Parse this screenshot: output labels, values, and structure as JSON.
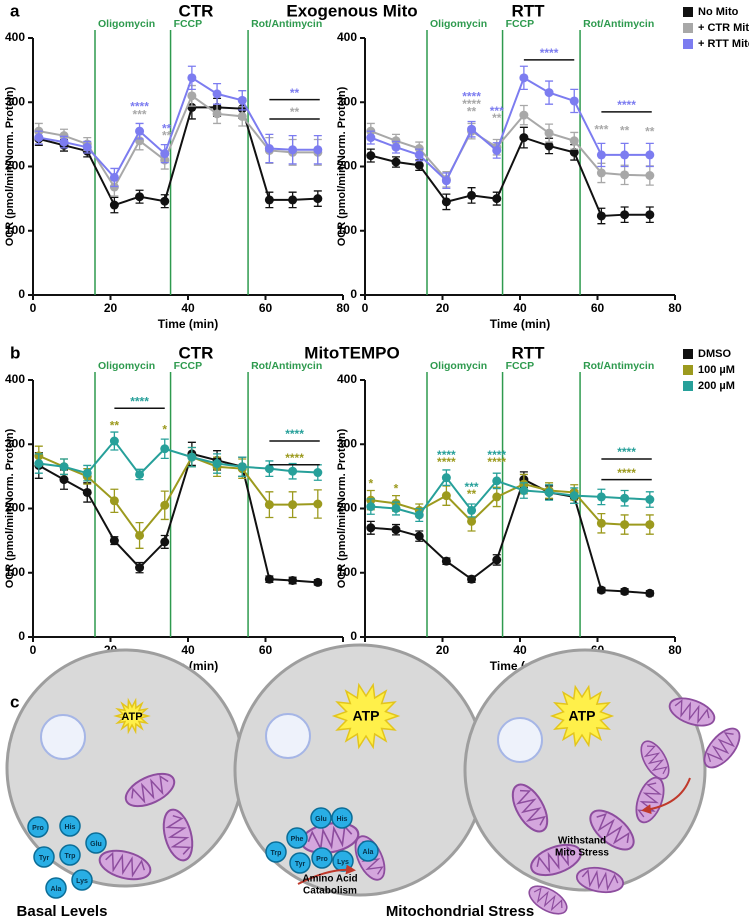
{
  "panels": {
    "a": "a",
    "b": "b",
    "c": "c",
    "a_title": "Exogenous Mito",
    "b_title": "MitoTEMPO"
  },
  "chart_data": [
    {
      "type": "line",
      "title": "CTR",
      "xlabel": "Time (min)",
      "ylabel": "OCR (pmol/min/Norm. Protein)",
      "x": [
        1.5,
        8,
        14,
        21,
        27.5,
        34,
        41,
        47.5,
        54,
        61,
        67,
        73.5
      ],
      "xlim": [
        0,
        80
      ],
      "xticks": [
        0,
        20,
        40,
        60,
        80
      ],
      "ylim": [
        0,
        400
      ],
      "yticks": [
        0,
        100,
        200,
        300,
        400
      ],
      "injections": [
        {
          "label": "Oligomycin",
          "x": 16
        },
        {
          "label": "FCCP",
          "x": 35.5
        },
        {
          "label": "Rot/Antimycin",
          "x": 55.5
        }
      ],
      "series": [
        {
          "name": "No Mito",
          "color": "#111111",
          "values": [
            243,
            233,
            224,
            140,
            153,
            146,
            292,
            292,
            290,
            148,
            148,
            150
          ],
          "errors": [
            10,
            9,
            9,
            12,
            10,
            10,
            18,
            14,
            15,
            12,
            12,
            12
          ]
        },
        {
          "name": "+ CTR Mito",
          "color": "#a8a8a8",
          "values": [
            255,
            248,
            235,
            168,
            240,
            210,
            310,
            282,
            278,
            225,
            222,
            222
          ],
          "errors": [
            12,
            10,
            10,
            14,
            14,
            14,
            16,
            15,
            15,
            20,
            20,
            20
          ]
        },
        {
          "name": "+ RTT Mito",
          "color": "#7c7cf0",
          "values": [
            245,
            238,
            230,
            183,
            255,
            220,
            338,
            313,
            303,
            228,
            226,
            226
          ],
          "errors": [
            10,
            9,
            9,
            14,
            12,
            14,
            18,
            16,
            15,
            22,
            22,
            22
          ]
        }
      ],
      "annotations": [
        {
          "text": "****",
          "x": 27.5,
          "y": 292,
          "color": "#7c7cf0"
        },
        {
          "text": "***",
          "x": 27.5,
          "y": 280,
          "color": "#a8a8a8"
        },
        {
          "text": "**",
          "x": 34.5,
          "y": 258,
          "color": "#7c7cf0"
        },
        {
          "text": "**",
          "x": 34.5,
          "y": 247,
          "color": "#a8a8a8"
        },
        {
          "text": "**",
          "x": [
            61,
            74
          ],
          "y": 304,
          "color": "#7c7cf0"
        },
        {
          "text": "**",
          "x": [
            61,
            74
          ],
          "y": 274,
          "color": "#a8a8a8"
        }
      ]
    },
    {
      "type": "line",
      "title": "RTT",
      "xlabel": "Time (min)",
      "ylabel": "OCR (pmol/min/Norm. Protein)",
      "legend": "outside-right",
      "x": [
        1.5,
        8,
        14,
        21,
        27.5,
        34,
        41,
        47.5,
        54,
        61,
        67,
        73.5
      ],
      "xlim": [
        0,
        80
      ],
      "xticks": [
        0,
        20,
        40,
        60,
        80
      ],
      "ylim": [
        0,
        400
      ],
      "yticks": [
        0,
        100,
        200,
        300,
        400
      ],
      "injections": [
        {
          "label": "Oligomycin",
          "x": 16
        },
        {
          "label": "FCCP",
          "x": 35.5
        },
        {
          "label": "Rot/Antimycin",
          "x": 55.5
        }
      ],
      "series": [
        {
          "name": "No Mito",
          "color": "#111111",
          "values": [
            217,
            207,
            202,
            145,
            155,
            150,
            245,
            232,
            222,
            123,
            125,
            125
          ],
          "errors": [
            10,
            8,
            8,
            12,
            12,
            10,
            16,
            12,
            12,
            12,
            12,
            12
          ]
        },
        {
          "name": "+ CTR Mito",
          "color": "#a8a8a8",
          "values": [
            255,
            240,
            228,
            180,
            255,
            230,
            280,
            252,
            240,
            190,
            187,
            186
          ],
          "errors": [
            12,
            10,
            10,
            12,
            12,
            12,
            15,
            14,
            13,
            15,
            15,
            15
          ]
        },
        {
          "name": "+ RTT Mito",
          "color": "#7c7cf0",
          "values": [
            245,
            230,
            218,
            178,
            258,
            225,
            338,
            315,
            302,
            218,
            218,
            218
          ],
          "errors": [
            10,
            9,
            9,
            12,
            12,
            12,
            18,
            18,
            18,
            18,
            18,
            18
          ]
        }
      ],
      "annotations": [
        {
          "text": "****",
          "x": 27.5,
          "y": 308,
          "color": "#7c7cf0"
        },
        {
          "text": "****",
          "x": 27.5,
          "y": 296,
          "color": "#a8a8a8"
        },
        {
          "text": "**",
          "x": 27.5,
          "y": 284,
          "color": "#a8a8a8"
        },
        {
          "text": "***",
          "x": 34,
          "y": 285,
          "color": "#7c7cf0"
        },
        {
          "text": "**",
          "x": 34,
          "y": 274,
          "color": "#a8a8a8"
        },
        {
          "text": "****",
          "x": [
            41,
            54
          ],
          "y": 366,
          "color": "#7c7cf0"
        },
        {
          "text": "***",
          "x": 61,
          "y": 256,
          "color": "#a8a8a8"
        },
        {
          "text": "**",
          "x": 67,
          "y": 255,
          "color": "#a8a8a8"
        },
        {
          "text": "**",
          "x": 73.5,
          "y": 253,
          "color": "#a8a8a8"
        },
        {
          "text": "****",
          "x": [
            61,
            74
          ],
          "y": 285,
          "color": "#7c7cf0"
        }
      ]
    },
    {
      "type": "line",
      "title": "CTR",
      "xlabel": "Time (min)",
      "ylabel": "OCR (pmol/min/Norm. Protein)",
      "x": [
        1.5,
        8,
        14,
        21,
        27.5,
        34,
        41,
        47.5,
        54,
        61,
        67,
        73.5
      ],
      "xlim": [
        0,
        80
      ],
      "xticks": [
        0,
        20,
        40,
        60,
        80
      ],
      "ylim": [
        0,
        400
      ],
      "yticks": [
        0,
        100,
        200,
        300,
        400
      ],
      "injections": [
        {
          "label": "Oligomycin",
          "x": 16
        },
        {
          "label": "FCCP",
          "x": 35.5
        },
        {
          "label": "Rot/Antimycin",
          "x": 55.5
        }
      ],
      "series": [
        {
          "name": "DMSO",
          "color": "#111111",
          "values": [
            267,
            245,
            225,
            150,
            108,
            148,
            285,
            275,
            265,
            90,
            88,
            85
          ],
          "errors": [
            20,
            15,
            15,
            6,
            8,
            10,
            18,
            15,
            15,
            5,
            5,
            4
          ]
        },
        {
          "name": "100 µM",
          "color": "#9c9a1e",
          "values": [
            282,
            265,
            250,
            212,
            158,
            205,
            280,
            265,
            262,
            206,
            206,
            207
          ],
          "errors": [
            15,
            12,
            12,
            18,
            20,
            22,
            15,
            15,
            15,
            20,
            20,
            22
          ]
        },
        {
          "name": "200 µM",
          "color": "#27a09a",
          "values": [
            270,
            265,
            255,
            305,
            253,
            293,
            280,
            270,
            265,
            262,
            258,
            256
          ],
          "errors": [
            15,
            12,
            12,
            14,
            8,
            15,
            15,
            15,
            15,
            12,
            12,
            12
          ]
        }
      ],
      "annotations": [
        {
          "text": "**",
          "x": 21,
          "y": 328,
          "color": "#9c9a1e"
        },
        {
          "text": "*",
          "x": 34,
          "y": 322,
          "color": "#9c9a1e"
        },
        {
          "text": "****",
          "x": [
            21,
            34
          ],
          "y": 356,
          "color": "#27a09a"
        },
        {
          "text": "****",
          "x": [
            61,
            74
          ],
          "y": 305,
          "color": "#27a09a"
        },
        {
          "text": "****",
          "x": [
            61,
            74
          ],
          "y": 268,
          "color": "#9c9a1e"
        }
      ]
    },
    {
      "type": "line",
      "title": "RTT",
      "xlabel": "Time (min)",
      "ylabel": "OCR (pmol/min/Norm. Protein)",
      "legend": "outside-right",
      "x": [
        1.5,
        8,
        14,
        21,
        27.5,
        34,
        41,
        47.5,
        54,
        61,
        67,
        73.5
      ],
      "xlim": [
        0,
        80
      ],
      "xticks": [
        0,
        20,
        40,
        60,
        80
      ],
      "ylim": [
        0,
        400
      ],
      "yticks": [
        0,
        100,
        200,
        300,
        400
      ],
      "injections": [
        {
          "label": "Oligomycin",
          "x": 16
        },
        {
          "label": "FCCP",
          "x": 35.5
        },
        {
          "label": "Rot/Antimycin",
          "x": 55.5
        }
      ],
      "series": [
        {
          "name": "DMSO",
          "color": "#111111",
          "values": [
            170,
            167,
            157,
            118,
            90,
            120,
            245,
            225,
            218,
            73,
            71,
            68
          ],
          "errors": [
            10,
            8,
            8,
            5,
            5,
            8,
            12,
            10,
            10,
            4,
            4,
            4
          ]
        },
        {
          "name": "100 µM",
          "color": "#9c9a1e",
          "values": [
            213,
            208,
            197,
            220,
            180,
            218,
            238,
            228,
            225,
            177,
            175,
            175
          ],
          "errors": [
            15,
            12,
            10,
            15,
            15,
            15,
            15,
            12,
            12,
            15,
            15,
            15
          ]
        },
        {
          "name": "200 µM",
          "color": "#27a09a",
          "values": [
            203,
            200,
            190,
            248,
            197,
            243,
            228,
            225,
            220,
            218,
            216,
            214
          ],
          "errors": [
            12,
            10,
            10,
            12,
            10,
            12,
            12,
            12,
            12,
            12,
            12,
            12
          ]
        }
      ],
      "annotations": [
        {
          "text": "*",
          "x": 1.5,
          "y": 238,
          "color": "#9c9a1e"
        },
        {
          "text": "*",
          "x": 8,
          "y": 230,
          "color": "#9c9a1e"
        },
        {
          "text": "****",
          "x": 21,
          "y": 282,
          "color": "#27a09a"
        },
        {
          "text": "****",
          "x": 21,
          "y": 271,
          "color": "#9c9a1e"
        },
        {
          "text": "***",
          "x": 27.5,
          "y": 232,
          "color": "#27a09a"
        },
        {
          "text": "**",
          "x": 27.5,
          "y": 221,
          "color": "#9c9a1e"
        },
        {
          "text": "****",
          "x": 34,
          "y": 282,
          "color": "#27a09a"
        },
        {
          "text": "****",
          "x": 34,
          "y": 271,
          "color": "#9c9a1e"
        },
        {
          "text": "****",
          "x": [
            61,
            74
          ],
          "y": 277,
          "color": "#27a09a"
        },
        {
          "text": "****",
          "x": [
            61,
            74
          ],
          "y": 245,
          "color": "#9c9a1e"
        }
      ]
    }
  ],
  "diagram": {
    "cells": [
      {
        "atp": "ATP",
        "amino_acids": [
          "Pro",
          "His",
          "Glu",
          "Tyr",
          "Trp",
          "Lys",
          "Ala"
        ]
      },
      {
        "atp": "ATP",
        "amino_acids": [
          "Phe",
          "Trp",
          "Tyr",
          "Glu",
          "His",
          "Pro",
          "Lys",
          "Ala"
        ],
        "caption": [
          "Amino Acid",
          "Catabolism"
        ]
      },
      {
        "atp": "ATP",
        "caption": [
          "Withstand",
          "Mito Stress"
        ]
      }
    ],
    "labels": [
      "Basal Levels",
      "Mitochondrial Stress"
    ]
  }
}
